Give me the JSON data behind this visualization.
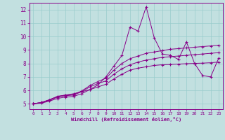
{
  "xlabel": "Windchill (Refroidissement éolien,°C)",
  "xlim": [
    -0.5,
    23.5
  ],
  "ylim": [
    4.6,
    12.5
  ],
  "xticks": [
    0,
    1,
    2,
    3,
    4,
    5,
    6,
    7,
    8,
    9,
    10,
    11,
    12,
    13,
    14,
    15,
    16,
    17,
    18,
    19,
    20,
    21,
    22,
    23
  ],
  "yticks": [
    5,
    6,
    7,
    8,
    9,
    10,
    11,
    12
  ],
  "bg_color": "#c2e0e0",
  "line_color": "#880088",
  "grid_color": "#99cccc",
  "series": [
    [
      5.0,
      5.1,
      5.3,
      5.55,
      5.65,
      5.75,
      5.9,
      6.05,
      6.4,
      7.0,
      7.8,
      8.6,
      10.7,
      10.4,
      12.2,
      9.9,
      8.7,
      8.6,
      8.3,
      9.6,
      8.0,
      7.1,
      7.0,
      8.4
    ],
    [
      5.0,
      5.1,
      5.3,
      5.55,
      5.65,
      5.7,
      5.95,
      6.35,
      6.65,
      6.9,
      7.5,
      8.0,
      8.35,
      8.55,
      8.75,
      8.85,
      8.95,
      9.05,
      9.1,
      9.15,
      9.2,
      9.25,
      9.3,
      9.35
    ],
    [
      5.0,
      5.1,
      5.25,
      5.5,
      5.6,
      5.65,
      5.9,
      6.25,
      6.5,
      6.7,
      7.2,
      7.6,
      7.9,
      8.1,
      8.25,
      8.35,
      8.45,
      8.5,
      8.55,
      8.6,
      8.65,
      8.7,
      8.75,
      8.8
    ],
    [
      5.0,
      5.05,
      5.2,
      5.4,
      5.5,
      5.55,
      5.75,
      6.05,
      6.25,
      6.45,
      6.85,
      7.2,
      7.5,
      7.65,
      7.75,
      7.85,
      7.9,
      7.92,
      7.95,
      7.98,
      8.0,
      8.02,
      8.05,
      8.1
    ]
  ]
}
